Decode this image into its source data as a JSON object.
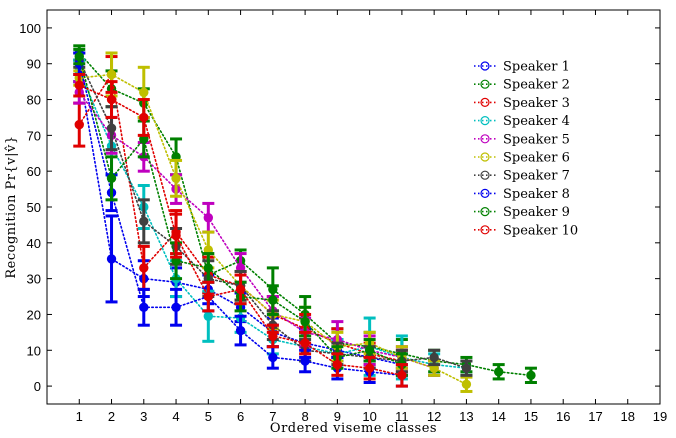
{
  "chart_data": {
    "type": "line",
    "style": "dotted lines with circular markers and error bars",
    "title": "",
    "xlabel": "Ordered viseme classes",
    "ylabel": "Recognition Pr{v|v̂}",
    "xlim": [
      0,
      19
    ],
    "ylim": [
      -5,
      105
    ],
    "xticks": [
      1,
      2,
      3,
      4,
      5,
      6,
      7,
      8,
      9,
      10,
      11,
      12,
      13,
      14,
      15,
      16,
      17,
      18,
      19
    ],
    "yticks": [
      0,
      10,
      20,
      30,
      40,
      50,
      60,
      70,
      80,
      90,
      100
    ],
    "legend_position": "upper-right",
    "series": [
      {
        "name": "Speaker 1",
        "color": "#0000ee",
        "x": [
          1,
          2,
          3,
          4,
          5,
          6,
          7,
          8,
          9,
          10,
          11
        ],
        "values": [
          88,
          35.5,
          30,
          29,
          27,
          22,
          15,
          12,
          10,
          8,
          6
        ],
        "errors": [
          3,
          12,
          5,
          4,
          4,
          4,
          4,
          4,
          3,
          3,
          3
        ]
      },
      {
        "name": "Speaker 2",
        "color": "#008000",
        "x": [
          1,
          2,
          3,
          4,
          5,
          6,
          7,
          8,
          9,
          10,
          11,
          12,
          13,
          14,
          15
        ],
        "values": [
          93,
          83,
          79,
          64,
          31,
          35,
          27,
          20,
          12,
          11,
          9,
          7,
          6,
          4,
          3
        ],
        "errors": [
          2,
          5,
          4,
          5,
          5,
          3,
          6,
          5,
          4,
          4,
          4,
          3,
          2,
          2,
          2
        ]
      },
      {
        "name": "Speaker 3",
        "color": "#e00000",
        "x": [
          1,
          2,
          3,
          4,
          5,
          6,
          7,
          8,
          9,
          10,
          11
        ],
        "values": [
          73,
          87,
          33,
          43,
          31,
          28,
          20,
          16,
          12,
          9,
          7
        ],
        "errors": [
          6,
          5,
          6,
          6,
          5,
          4,
          5,
          4,
          4,
          3,
          3
        ]
      },
      {
        "name": "Speaker 4",
        "color": "#00bfbf",
        "x": [
          1,
          2,
          3,
          4,
          5,
          6,
          7,
          8,
          9,
          10,
          11,
          12,
          13
        ],
        "values": [
          88,
          67,
          50,
          30,
          19.5,
          19,
          13,
          11,
          9,
          11,
          8,
          6,
          5
        ],
        "errors": [
          3,
          8,
          6,
          5,
          7,
          4,
          4,
          4,
          4,
          8,
          6,
          3,
          2
        ]
      },
      {
        "name": "Speaker 5",
        "color": "#bf00bf",
        "x": [
          1,
          2,
          3,
          4,
          5,
          6,
          7,
          8,
          9,
          10,
          11,
          12
        ],
        "values": [
          82,
          70,
          64,
          55,
          47,
          33,
          21,
          15,
          13,
          10,
          8,
          5
        ],
        "errors": [
          3,
          5,
          4,
          4,
          4,
          4,
          4,
          4,
          5,
          4,
          3,
          2
        ]
      },
      {
        "name": "Speaker 6",
        "color": "#bfbf00",
        "x": [
          1,
          2,
          3,
          4,
          5,
          6,
          7,
          8,
          9,
          10,
          11,
          12,
          13
        ],
        "values": [
          86,
          87,
          82,
          58,
          38,
          28,
          20,
          18,
          11,
          12,
          8,
          5,
          0.5
        ],
        "errors": [
          2,
          6,
          7,
          5,
          5,
          4,
          4,
          4,
          4,
          3,
          3,
          2,
          2
        ]
      },
      {
        "name": "Speaker 7",
        "color": "#404040",
        "x": [
          1,
          2,
          3,
          4,
          5,
          6,
          7,
          8,
          9,
          10,
          11,
          12,
          13
        ],
        "values": [
          91,
          72,
          46,
          39,
          30,
          28,
          17,
          10,
          9,
          8,
          7,
          8,
          5
        ],
        "errors": [
          2,
          6,
          6,
          5,
          5,
          4,
          4,
          3,
          3,
          3,
          3,
          2,
          2
        ]
      },
      {
        "name": "Speaker 8",
        "color": "#0000ee",
        "x": [
          1,
          2,
          3,
          4,
          5,
          6,
          7,
          8,
          9,
          10,
          11
        ],
        "values": [
          90,
          54,
          22,
          22,
          25,
          15.5,
          8,
          7,
          5,
          4,
          3
        ],
        "errors": [
          3,
          5,
          5,
          5,
          4,
          4,
          3,
          3,
          3,
          3,
          3
        ]
      },
      {
        "name": "Speaker 9",
        "color": "#008000",
        "x": [
          1,
          2,
          3,
          4,
          5,
          6,
          7,
          8,
          9,
          10,
          11
        ],
        "values": [
          92,
          58,
          69,
          35,
          33,
          25,
          24,
          18,
          8,
          10,
          6
        ],
        "errors": [
          2,
          6,
          5,
          5,
          4,
          4,
          4,
          4,
          3,
          3,
          3
        ]
      },
      {
        "name": "Speaker 10",
        "color": "#e00000",
        "x": [
          1,
          2,
          3,
          4,
          5,
          6,
          7,
          8,
          9,
          10,
          11
        ],
        "values": [
          84,
          80,
          75,
          42,
          25,
          27,
          14,
          12,
          6,
          5,
          3
        ],
        "errors": [
          3,
          5,
          5,
          6,
          4,
          4,
          3,
          3,
          3,
          3,
          3
        ]
      }
    ]
  }
}
